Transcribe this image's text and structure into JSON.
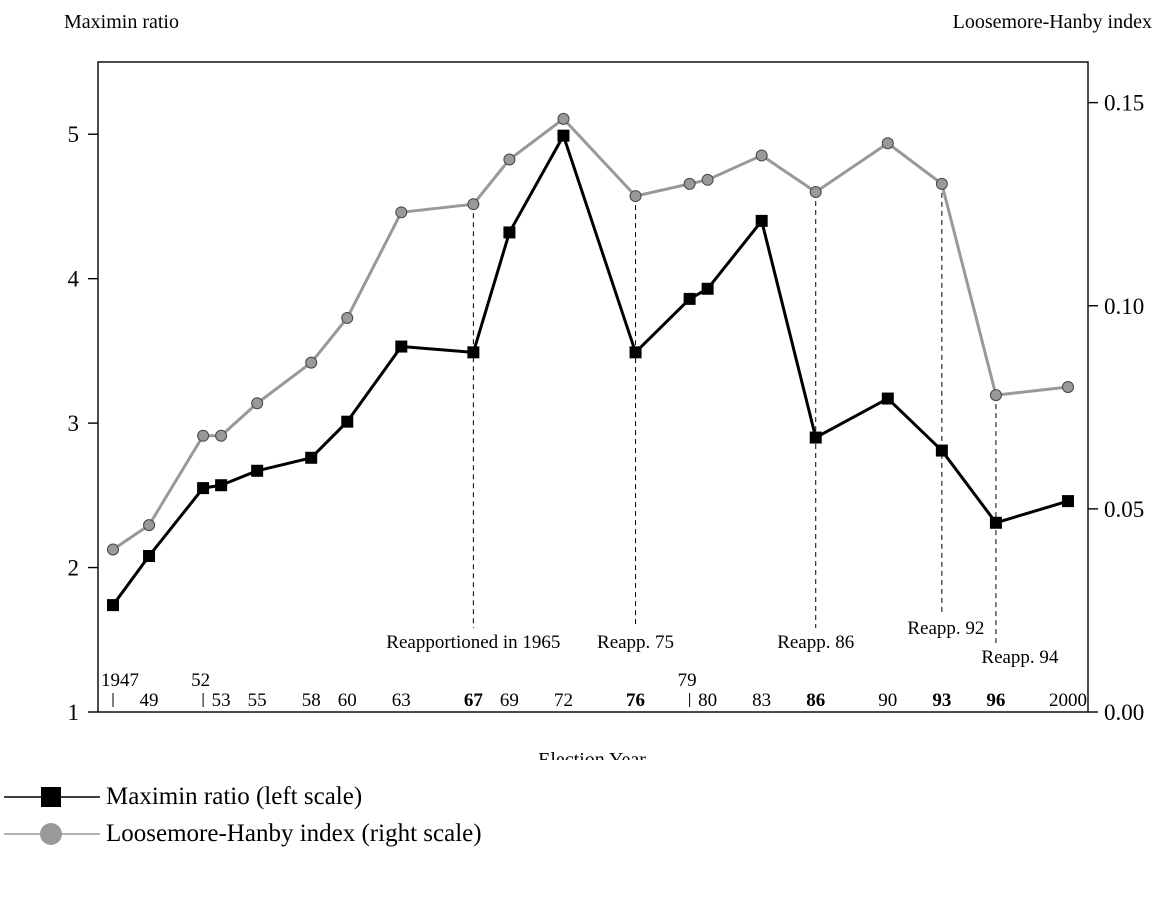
{
  "chart_data": {
    "type": "line",
    "left_axis_title": "Maximin ratio",
    "right_axis_title": "Loosemore-Hanby index",
    "xlabel": "Election Year",
    "y_left_lim": [
      1,
      5.5
    ],
    "y_right_lim": [
      0.0,
      0.16
    ],
    "y_left_ticks": [
      1,
      2,
      3,
      4,
      5
    ],
    "y_right_ticks": [
      "0.00",
      "0.05",
      "0.10",
      "0.15"
    ],
    "x": [
      1947,
      1949,
      1952,
      1953,
      1955,
      1958,
      1960,
      1963,
      1967,
      1969,
      1972,
      1976,
      1979,
      1980,
      1983,
      1986,
      1990,
      1993,
      1996,
      2000
    ],
    "x_tick_labels": [
      {
        "year": 1947,
        "label": "1947",
        "row": "upper"
      },
      {
        "year": 1949,
        "label": "49",
        "row": "lower"
      },
      {
        "year": 1952,
        "label": "52",
        "row": "upper"
      },
      {
        "year": 1953,
        "label": "53",
        "row": "lower"
      },
      {
        "year": 1955,
        "label": "55",
        "row": "lower"
      },
      {
        "year": 1958,
        "label": "58",
        "row": "lower"
      },
      {
        "year": 1960,
        "label": "60",
        "row": "lower"
      },
      {
        "year": 1963,
        "label": "63",
        "row": "lower"
      },
      {
        "year": 1967,
        "label": "67",
        "row": "lower",
        "bold": true
      },
      {
        "year": 1969,
        "label": "69",
        "row": "lower"
      },
      {
        "year": 1972,
        "label": "72",
        "row": "lower"
      },
      {
        "year": 1976,
        "label": "76",
        "row": "lower",
        "bold": true
      },
      {
        "year": 1979,
        "label": "79",
        "row": "upper"
      },
      {
        "year": 1980,
        "label": "80",
        "row": "lower"
      },
      {
        "year": 1983,
        "label": "83",
        "row": "lower"
      },
      {
        "year": 1986,
        "label": "86",
        "row": "lower",
        "bold": true
      },
      {
        "year": 1990,
        "label": "90",
        "row": "lower"
      },
      {
        "year": 1993,
        "label": "93",
        "row": "lower",
        "bold": true
      },
      {
        "year": 1996,
        "label": "96",
        "row": "lower",
        "bold": true
      },
      {
        "year": 2000,
        "label": "2000",
        "row": "lower"
      }
    ],
    "series": [
      {
        "name": "Maximin ratio (left scale)",
        "axis": "left",
        "color": "#000000",
        "marker": "square",
        "values": [
          1.74,
          2.08,
          2.55,
          2.57,
          2.67,
          2.76,
          3.01,
          3.53,
          3.49,
          4.32,
          4.99,
          3.49,
          3.86,
          3.93,
          4.4,
          2.9,
          3.17,
          2.81,
          2.31,
          2.46
        ]
      },
      {
        "name": "Loosemore-Hanby index (right scale)",
        "axis": "right",
        "color": "#999999",
        "marker": "circle",
        "values": [
          0.04,
          0.046,
          0.068,
          0.068,
          0.076,
          0.086,
          0.097,
          0.123,
          0.125,
          0.136,
          0.146,
          0.127,
          0.13,
          0.131,
          0.137,
          0.128,
          0.14,
          0.13,
          0.078,
          0.08
        ]
      }
    ],
    "annotations": [
      {
        "year": 1967,
        "text": "Reapportioned in 1965",
        "level": "upper"
      },
      {
        "year": 1976,
        "text": "Reapp. 75",
        "level": "upper"
      },
      {
        "year": 1986,
        "text": "Reapp. 86",
        "level": "upper"
      },
      {
        "year": 1993,
        "text": "Reapp. 92",
        "level": "middle"
      },
      {
        "year": 1996,
        "text": "Reapp. 94",
        "level": "lower"
      }
    ],
    "grid": false,
    "legend_position": "bottom-left"
  }
}
